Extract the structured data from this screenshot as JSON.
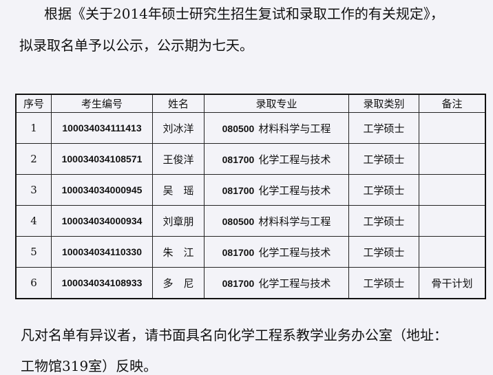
{
  "intro_line1": "根据《关于2014年硕士研究生招生复试和录取工作的有关规定》，",
  "intro_line2": "拟录取名单予以公示，公示期为七天。",
  "table": {
    "headers": [
      "序号",
      "考生编号",
      "姓名",
      "录取专业",
      "录取类别",
      "备注"
    ],
    "rows": [
      {
        "no": "1",
        "id": "100034034111413",
        "name": "刘冰洋",
        "code": "080500",
        "major": "材料科学与工程",
        "type": "工学硕士",
        "note": ""
      },
      {
        "no": "2",
        "id": "100034034108571",
        "name": "王俊洋",
        "code": "081700",
        "major": "化学工程与技术",
        "type": "工学硕士",
        "note": ""
      },
      {
        "no": "3",
        "id": "100034034000945",
        "name": "吴　瑶",
        "code": "081700",
        "major": "化学工程与技术",
        "type": "工学硕士",
        "note": ""
      },
      {
        "no": "4",
        "id": "100034034000934",
        "name": "刘章朋",
        "code": "080500",
        "major": "材料科学与工程",
        "type": "工学硕士",
        "note": ""
      },
      {
        "no": "5",
        "id": "100034034110330",
        "name": "朱　江",
        "code": "081700",
        "major": "化学工程与技术",
        "type": "工学硕士",
        "note": ""
      },
      {
        "no": "6",
        "id": "100034034108933",
        "name": "多　尼",
        "code": "081700",
        "major": "化学工程与技术",
        "type": "工学硕士",
        "note": "骨干计划"
      }
    ]
  },
  "footer_line1": "凡对名单有异议者，请书面具名向化学工程系教学业务办公室（地址：",
  "footer_line2": "工物馆319室）反映。"
}
